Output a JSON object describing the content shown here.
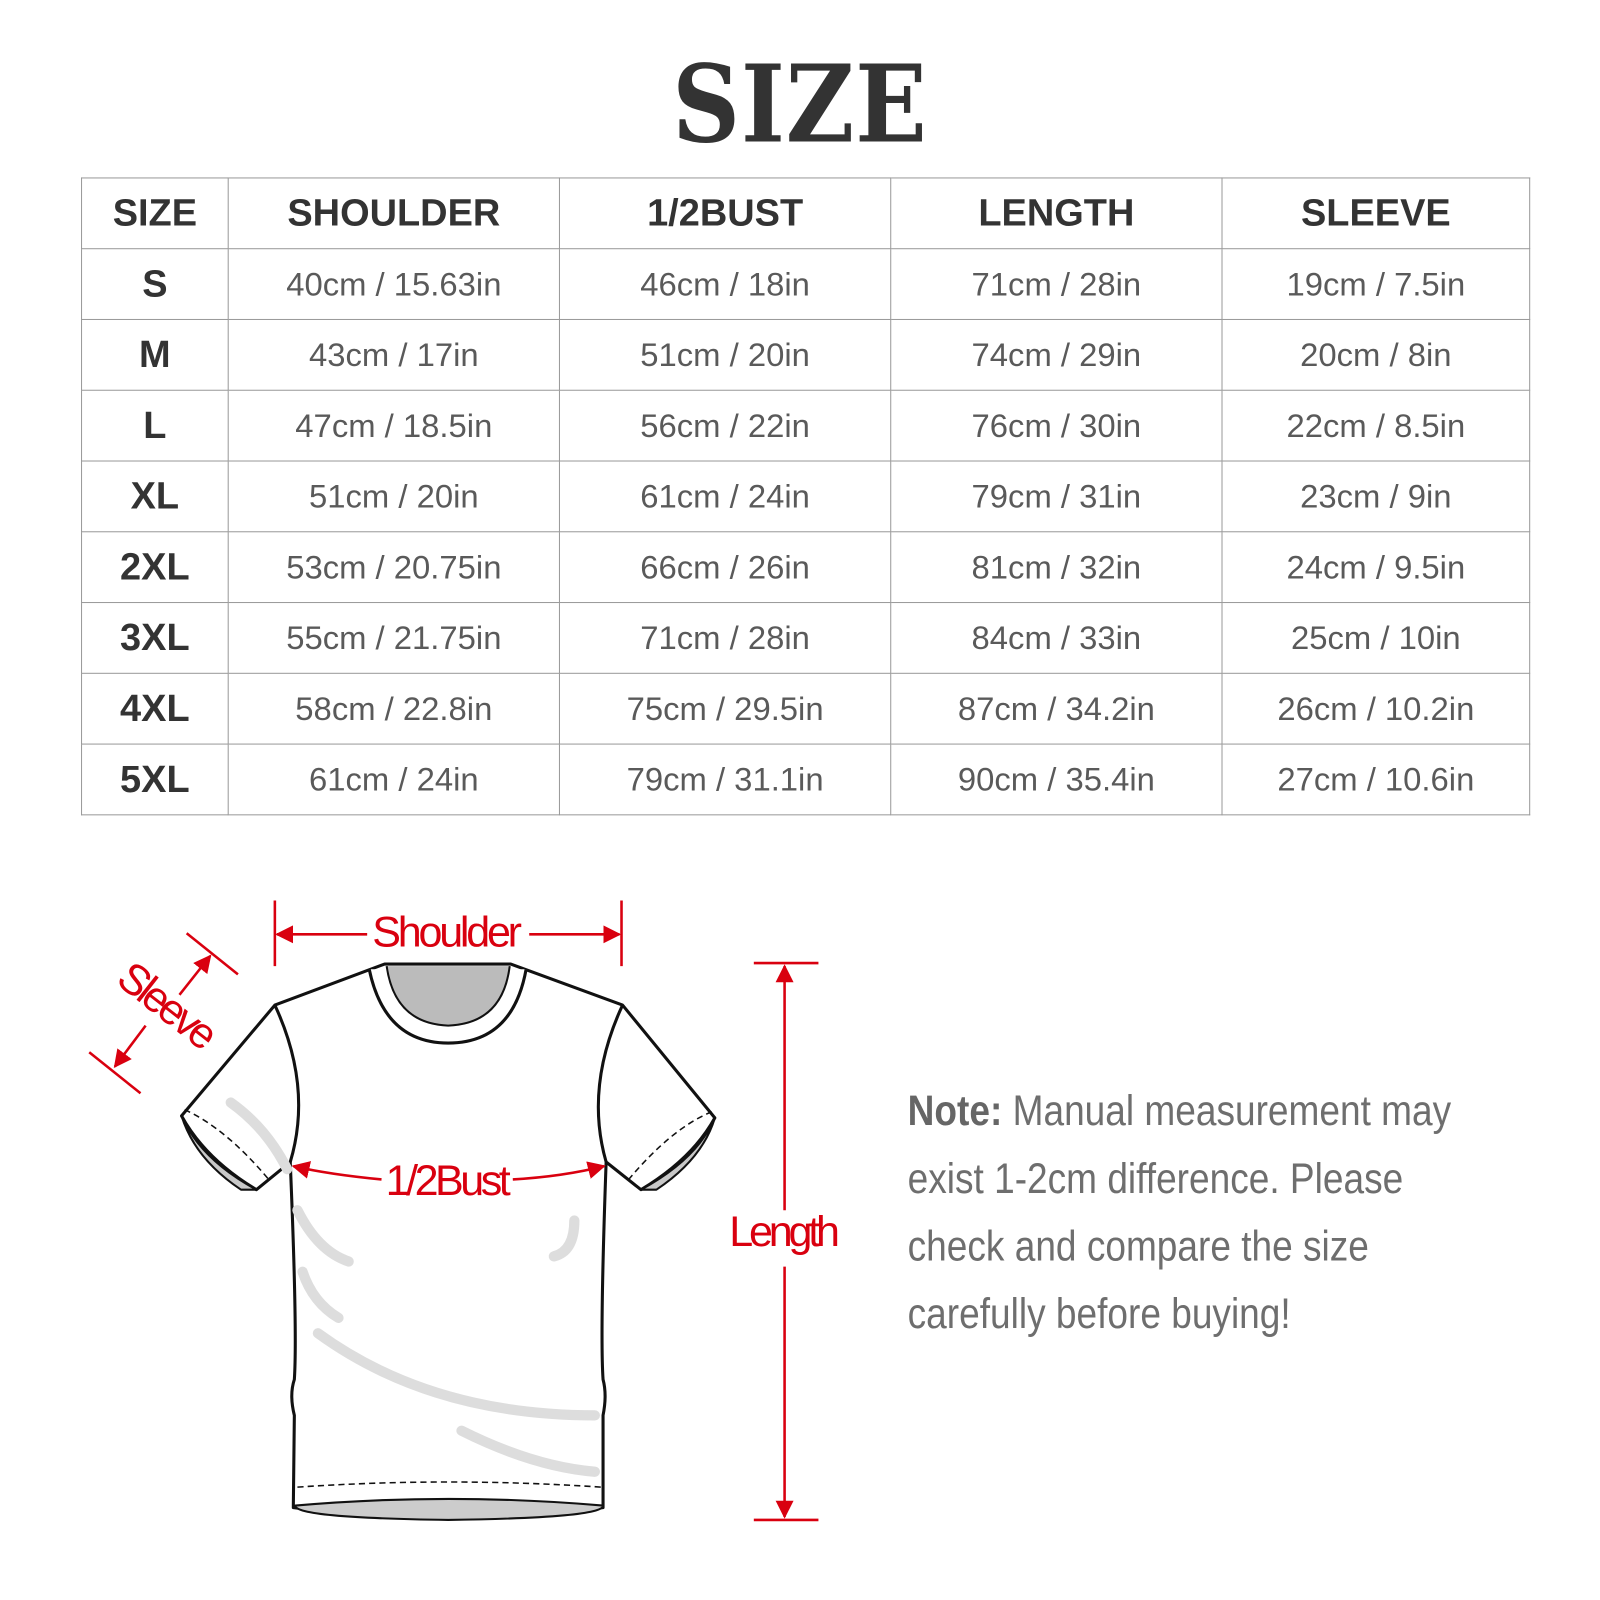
{
  "title": "SIZE",
  "table": {
    "headers": [
      "SIZE",
      "SHOULDER",
      "1/2BUST",
      "LENGTH",
      "SLEEVE"
    ],
    "rows": [
      [
        "S",
        "40cm / 15.63in",
        "46cm / 18in",
        "71cm / 28in",
        "19cm / 7.5in"
      ],
      [
        "M",
        "43cm / 17in",
        "51cm / 20in",
        "74cm / 29in",
        "20cm / 8in"
      ],
      [
        "L",
        "47cm / 18.5in",
        "56cm / 22in",
        "76cm / 30in",
        "22cm / 8.5in"
      ],
      [
        "XL",
        "51cm / 20in",
        "61cm / 24in",
        "79cm / 31in",
        "23cm / 9in"
      ],
      [
        "2XL",
        "53cm / 20.75in",
        "66cm / 26in",
        "81cm / 32in",
        "24cm / 9.5in"
      ],
      [
        "3XL",
        "55cm / 21.75in",
        "71cm / 28in",
        "84cm / 33in",
        "25cm / 10in"
      ],
      [
        "4XL",
        "58cm / 22.8in",
        "75cm / 29.5in",
        "87cm / 34.2in",
        "26cm / 10.2in"
      ],
      [
        "5XL",
        "61cm / 24in",
        "79cm / 31.1in",
        "90cm / 35.4in",
        "27cm / 10.6in"
      ]
    ]
  },
  "diagram": {
    "shoulder": "Shoulder",
    "sleeve": "Sleeve",
    "bust": "1/2Bust",
    "length": "Length",
    "accent_color": "#d9000f"
  },
  "note": {
    "label": "Note:",
    "lines": [
      " Manual measurement may",
      "exist 1-2cm difference. Please",
      "check and compare the size",
      "carefully before buying!"
    ]
  }
}
